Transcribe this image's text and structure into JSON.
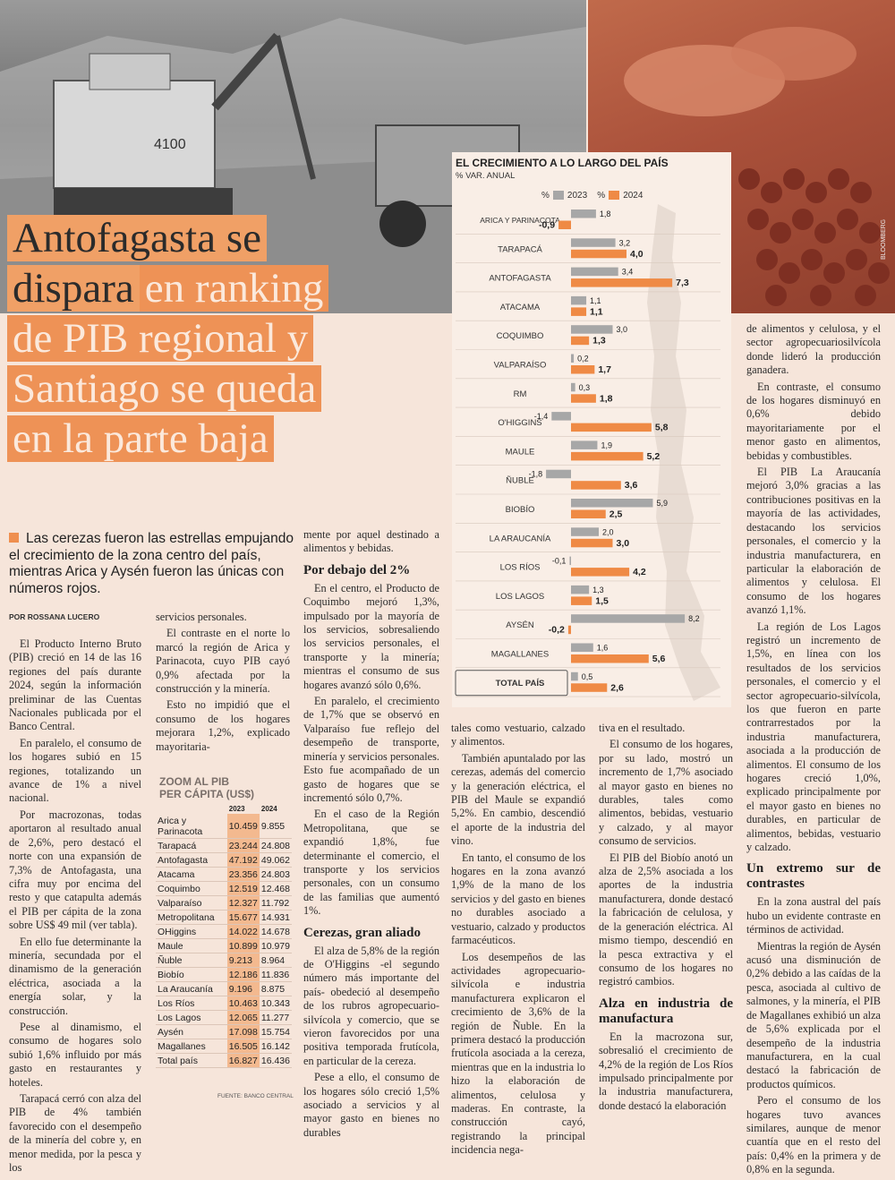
{
  "headline": {
    "dark_lines": [
      "Antofagasta se",
      "dispara"
    ],
    "light_inline": "en ranking",
    "light_lines": [
      "de PIB regional y",
      "Santiago se queda",
      "en la parte baja"
    ]
  },
  "photo": {
    "credit": "BLOOMBERG",
    "truck_number": "4100"
  },
  "chart": {
    "title": "EL CRECIMIENTO A LO LARGO DEL PAÍS",
    "subtitle": "% VAR. ANUAL",
    "legend_2023": "2023",
    "legend_2024": "2024",
    "legend_pct": "%",
    "colors": {
      "s2023": "#a7a7a7",
      "s2024": "#ef8a45"
    }
  },
  "chart_data": {
    "type": "bar",
    "title": "EL CRECIMIENTO A LO LARGO DEL PAÍS",
    "subtitle": "% VAR. ANUAL",
    "categories": [
      "ARICA Y PARINACOTA",
      "TARAPACÁ",
      "ANTOFAGASTA",
      "ATACAMA",
      "COQUIMBO",
      "VALPARAÍSO",
      "RM",
      "O'HIGGINS",
      "MAULE",
      "ÑUBLE",
      "BIOBÍO",
      "LA ARAUCANÍA",
      "LOS RÍOS",
      "LOS LAGOS",
      "AYSÉN",
      "MAGALLANES",
      "TOTAL PAÍS"
    ],
    "series": [
      {
        "name": "2023",
        "values": [
          1.8,
          3.2,
          3.4,
          1.1,
          3.0,
          0.2,
          0.3,
          -1.4,
          1.9,
          -1.8,
          5.9,
          2.0,
          -0.1,
          1.3,
          8.2,
          1.6,
          0.5
        ],
        "labels": [
          "1,8",
          "3,2",
          "3,4",
          "1,1",
          "3,0",
          "0,2",
          "0,3",
          "-1,4",
          "1,9",
          "-1,8",
          "5,9",
          "2,0",
          "-0,1",
          "1,3",
          "8,2",
          "1,6",
          "0,5"
        ]
      },
      {
        "name": "2024",
        "values": [
          -0.9,
          4.0,
          7.3,
          1.1,
          1.3,
          1.7,
          1.8,
          5.8,
          5.2,
          3.6,
          2.5,
          3.0,
          4.2,
          1.5,
          -0.2,
          5.6,
          2.6
        ],
        "labels": [
          "-0,9",
          "4,0",
          "7,3",
          "1,1",
          "1,3",
          "1,7",
          "1,8",
          "5,8",
          "5,2",
          "3,6",
          "2,5",
          "3,0",
          "4,2",
          "1,5",
          "-0,2",
          "5,6",
          "2,6"
        ]
      }
    ],
    "orientation": "horizontal",
    "legend": "top"
  },
  "lede": "Las cerezas fueron las estrellas empujando el crecimiento de la zona centro del país, mientras Arica y Aysén fueron las únicas con números rojos.",
  "byline": "POR ROSSANA LUCERO",
  "col1": [
    "El Producto Interno Bruto (PIB) creció en 14 de las 16 regiones del país durante 2024, según la información preliminar de las Cuentas Nacionales publicada por el Banco Central.",
    "En paralelo, el consumo de los hogares subió en 15 regiones, totalizando un avance de 1% a nivel nacional.",
    "Por macrozonas, todas aportaron al resultado anual de 2,6%, pero destacó el norte con una expansión de 7,3% de Antofagasta, una cifra muy por encima del resto y que catapulta además el PIB per cápita de la zona sobre US$ 49 mil (ver tabla).",
    "En ello fue determinante la minería, secundada por el dinamismo de la generación eléctrica, asociada a la energía solar, y la construcción.",
    "Pese al dinamismo, el consumo de hogares solo subió 1,6% influido por más gasto en restaurantes y hoteles.",
    "Tarapacá cerró con alza del PIB de 4% también favorecido con el desempeño de la minería del cobre y, en menor medida, por la pesca y los"
  ],
  "col2_top": [
    "servicios personales.",
    "El contraste en el norte lo marcó la región de Arica y Parinacota, cuyo PIB cayó 0,9% afectada por la construcción y la minería.",
    "Esto no impidió que el consumo de los hogares mejorara 1,2%, explicado mayoritaria-"
  ],
  "table": {
    "title_line1": "ZOOM AL PIB",
    "title_line2": "PER CÁPITA  (US$)",
    "col_2023": "2023",
    "col_2024": "2024",
    "rows": [
      {
        "region": "Arica y Parinacota",
        "v2023": "10.459",
        "v2024": "9.855"
      },
      {
        "region": "Tarapacá",
        "v2023": "23.244",
        "v2024": "24.808"
      },
      {
        "region": "Antofagasta",
        "v2023": "47.192",
        "v2024": "49.062"
      },
      {
        "region": "Atacama",
        "v2023": "23.356",
        "v2024": "24.803"
      },
      {
        "region": "Coquimbo",
        "v2023": "12.519",
        "v2024": "12.468"
      },
      {
        "region": "Valparaíso",
        "v2023": "12.327",
        "v2024": "11.792"
      },
      {
        "region": "Metropolitana",
        "v2023": "15.677",
        "v2024": "14.931"
      },
      {
        "region": "OHiggins",
        "v2023": "14.022",
        "v2024": "14.678"
      },
      {
        "region": "Maule",
        "v2023": "10.899",
        "v2024": "10.979"
      },
      {
        "region": "Ñuble",
        "v2023": "9.213",
        "v2024": "8.964"
      },
      {
        "region": "Biobío",
        "v2023": "12.186",
        "v2024": "11.836"
      },
      {
        "region": "La Araucanía",
        "v2023": "9.196",
        "v2024": "8.875"
      },
      {
        "region": "Los Ríos",
        "v2023": "10.463",
        "v2024": "10.343"
      },
      {
        "region": "Los Lagos",
        "v2023": "12.065",
        "v2024": "11.277"
      },
      {
        "region": "Aysén",
        "v2023": "17.098",
        "v2024": "15.754"
      },
      {
        "region": "Magallanes",
        "v2023": "16.505",
        "v2024": "16.142"
      },
      {
        "region": "Total país",
        "v2023": "16.827",
        "v2024": "16.436"
      }
    ],
    "source": "FUENTE: BANCO CENTRAL"
  },
  "col3": {
    "intro": "mente por aquel destinado a alimentos y bebidas.",
    "h1": "Por debajo del 2%",
    "p1": [
      "En el centro, el Producto de Coquimbo mejoró 1,3%, impulsado por la mayoría de los servicios, sobresaliendo los servicios personales, el transporte y la minería; mientras el consumo de sus hogares avanzó sólo 0,6%.",
      "En paralelo, el crecimiento de 1,7% que se observó en Valparaíso fue reflejo del desempeño de transporte, minería y servicios personales. Esto fue acompañado de un gasto de hogares que se incrementó sólo 0,7%.",
      "En el caso de la Región Metropolitana, que se expandió 1,8%, fue determinante el comercio, el transporte y los servicios personales, con un consumo de las familias que aumentó 1%."
    ],
    "h2": "Cerezas, gran aliado",
    "p2": [
      "El alza de 5,8% de la región de O'Higgins -el segundo número más importante del país- obedeció al desempeño de los rubros agropecuario-silvícola y comercio, que se vieron favorecidos por una positiva temporada frutícola, en particular de la cereza.",
      "Pese a ello, el consumo de los hogares sólo creció 1,5% asociado a servicios y al mayor gasto en bienes no durables"
    ]
  },
  "col4": [
    "tales como vestuario, calzado y alimentos.",
    "También apuntalado por las cerezas, además del comercio y la generación eléctrica, el PIB del Maule se expandió 5,2%. En cambio, descendió el aporte de la industria del vino.",
    "En tanto, el consumo de los hogares en la zona avanzó 1,9% de la mano de los servicios y del gasto en bienes no durables asociado a vestuario, calzado y productos farmacéuticos.",
    "Los desempeños de las actividades agropecuario-silvícola e industria manufacturera explicaron el crecimiento de 3,6% de la región de Ñuble. En la primera destacó la producción frutícola asociada a la cereza, mientras que en la industria lo hizo la elaboración de alimentos, celulosa y maderas. En contraste, la construcción cayó, registrando la principal incidencia nega-"
  ],
  "col5": {
    "p": [
      "tiva en el resultado.",
      "El consumo de los hogares, por su lado, mostró un incremento de 1,7% asociado al mayor gasto en bienes no durables, tales como alimentos, bebidas, vestuario y calzado, y al mayor consumo de servicios.",
      "El PIB del Biobío anotó un alza de 2,5% asociada a los aportes de la industria manufacturera, donde destacó la fabricación de celulosa, y de la generación eléctrica. Al mismo tiempo, descendió en la pesca extractiva y el consumo de los hogares no registró cambios."
    ],
    "h": "Alza en industria de manufactura",
    "p2": [
      "En la macrozona sur, sobresalió el crecimiento de 4,2% de la región de Los Ríos impulsado principalmente por la industria manufacturera, donde destacó la elaboración"
    ]
  },
  "col6": {
    "p": [
      "de alimentos y celulosa, y el sector agropecuariosilvícola donde lideró la producción ganadera.",
      "En contraste, el consumo de los hogares disminuyó en 0,6% debido mayoritariamente por el menor gasto en alimentos, bebidas y combustibles.",
      "El PIB La Araucanía mejoró 3,0% gracias a las contribuciones positivas en la mayoría de las actividades, destacando los servicios personales, el comercio y la industria manufacturera, en particular la elaboración de alimentos y celulosa. El consumo de los hogares avanzó 1,1%.",
      "La región de Los Lagos registró un incremento de 1,5%, en línea con los resultados de los servicios personales, el comercio y el sector agropecuario-silvícola, los que fueron en parte contrarrestados por la industria manufacturera, asociada a la producción de alimentos. El consumo de los hogares creció 1,0%, explicado principalmente por el mayor gasto en bienes no durables, en particular de alimentos, bebidas, vestuario y calzado."
    ],
    "h": "Un extremo sur de contrastes",
    "p2": [
      "En la zona austral del país hubo un evidente contraste en términos de actividad.",
      "Mientras la región de Aysén acusó una disminución de 0,2% debido a las caídas de la pesca, asociada al cultivo de salmones, y la minería, el PIB de Magallanes exhibió un alza de 5,6% explicada por el desempeño de la industria manufacturera, en la cual destacó la fabricación de productos químicos.",
      "Pero el consumo de los hogares tuvo avances similares, aunque de menor cuantía que en el resto del país: 0,4% en la primera y de 0,8% en la segunda."
    ]
  }
}
